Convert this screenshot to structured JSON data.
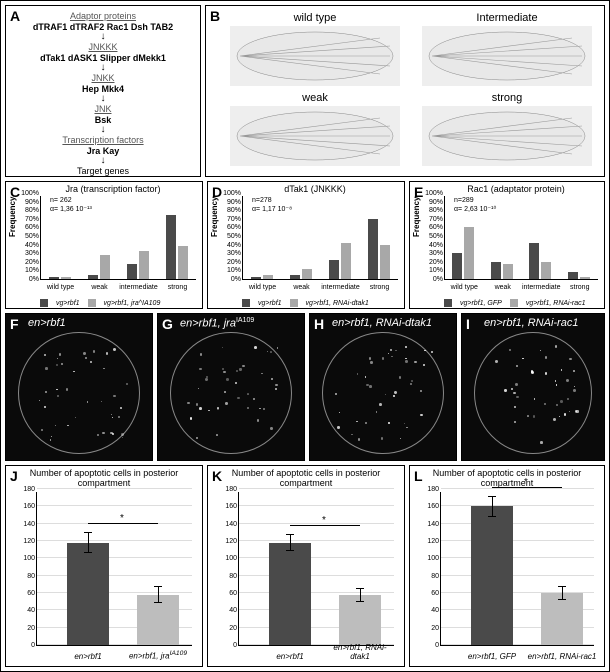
{
  "colors": {
    "dark_bar": "#4a4a4a",
    "light_bar": "#a8a8a8",
    "panel_bg": "#ffffff",
    "dark_panel": "#0a0a0a"
  },
  "panelA": {
    "label": "A",
    "heading1": "Adaptor proteins",
    "row1": "dTRAF1   dTRAF2   Rac1   Dsh   TAB2",
    "heading2": "JNKKK",
    "row2": "dTak1   dASK1   Slipper   dMekk1",
    "heading3": "JNKK",
    "row3": "Hep   Mkk4",
    "heading4": "JNK",
    "row4": "Bsk",
    "heading5": "Transcription factors",
    "row5": "Jra    Kay",
    "row6": "Target genes"
  },
  "panelB": {
    "label": "B",
    "wings": [
      {
        "label": "wild type"
      },
      {
        "label": "Intermediate"
      },
      {
        "label": "weak"
      },
      {
        "label": "strong"
      }
    ]
  },
  "chart_categories": [
    "wild type",
    "weak",
    "intermediate",
    "strong"
  ],
  "yticks_pct": [
    0,
    10,
    20,
    30,
    40,
    50,
    60,
    70,
    80,
    90,
    100
  ],
  "panelC": {
    "label": "C",
    "title": "Jra (transcription factor)",
    "ylabel": "Frequency",
    "n": "n= 262",
    "alpha": "α= 1,36 10⁻¹³",
    "series": [
      {
        "name": "vg>rbf1",
        "color": "#4a4a4a",
        "values": [
          2,
          5,
          18,
          75
        ]
      },
      {
        "name": "vg>rbf1, jra^IA109",
        "color": "#a8a8a8",
        "values": [
          2,
          28,
          32,
          38
        ]
      }
    ]
  },
  "panelD": {
    "label": "D",
    "title": "dTak1 (JNKKK)",
    "ylabel": "Frequency",
    "n": "n=278",
    "alpha": "α= 1,17 10⁻⁸",
    "series": [
      {
        "name": "vg>rbf1",
        "color": "#4a4a4a",
        "values": [
          2,
          5,
          22,
          70
        ]
      },
      {
        "name": "vg>rbf1, RNAi-dtak1",
        "color": "#a8a8a8",
        "values": [
          5,
          12,
          42,
          40
        ]
      }
    ]
  },
  "panelE": {
    "label": "E",
    "title": "Rac1 (adaptator protein)",
    "ylabel": "Frequency",
    "n": "n=289",
    "alpha": "α= 2,63 10⁻¹⁰",
    "series": [
      {
        "name": "vg>rbf1, GFP",
        "color": "#4a4a4a",
        "values": [
          30,
          20,
          42,
          8
        ]
      },
      {
        "name": "vg>rbf1, RNAi-rac1",
        "color": "#a8a8a8",
        "values": [
          60,
          18,
          20,
          2
        ]
      }
    ]
  },
  "panelF": {
    "label": "F",
    "genotype": "en>rbf1"
  },
  "panelG": {
    "label": "G",
    "genotype": "en>rbf1, jra^IA109"
  },
  "panelH": {
    "label": "H",
    "genotype": "en>rbf1, RNAi-dtak1"
  },
  "panelI": {
    "label": "I",
    "genotype": "en>rbf1, RNAi-rac1"
  },
  "jkl_title": "Number of apoptotic cells in posterior compartment",
  "jkl_yticks": [
    0,
    20,
    40,
    60,
    80,
    100,
    120,
    140,
    160,
    180
  ],
  "panelJ": {
    "label": "J",
    "bars": [
      {
        "label": "en>rbf1",
        "value": 118,
        "err": 12,
        "color": "#4a4a4a"
      },
      {
        "label": "en>rbf1, jra^IA109",
        "value": 58,
        "err": 10,
        "color": "#bdbdbd"
      }
    ]
  },
  "panelK": {
    "label": "K",
    "bars": [
      {
        "label": "en>rbf1",
        "value": 118,
        "err": 10,
        "color": "#4a4a4a"
      },
      {
        "label": "en>rbf1, RNAi-dtak1",
        "value": 58,
        "err": 8,
        "color": "#bdbdbd"
      }
    ]
  },
  "panelL": {
    "label": "L",
    "bars": [
      {
        "label": "en>rbf1, GFP",
        "value": 160,
        "err": 12,
        "color": "#4a4a4a"
      },
      {
        "label": "en>rbf1, RNAi-rac1",
        "value": 60,
        "err": 8,
        "color": "#bdbdbd"
      }
    ]
  }
}
